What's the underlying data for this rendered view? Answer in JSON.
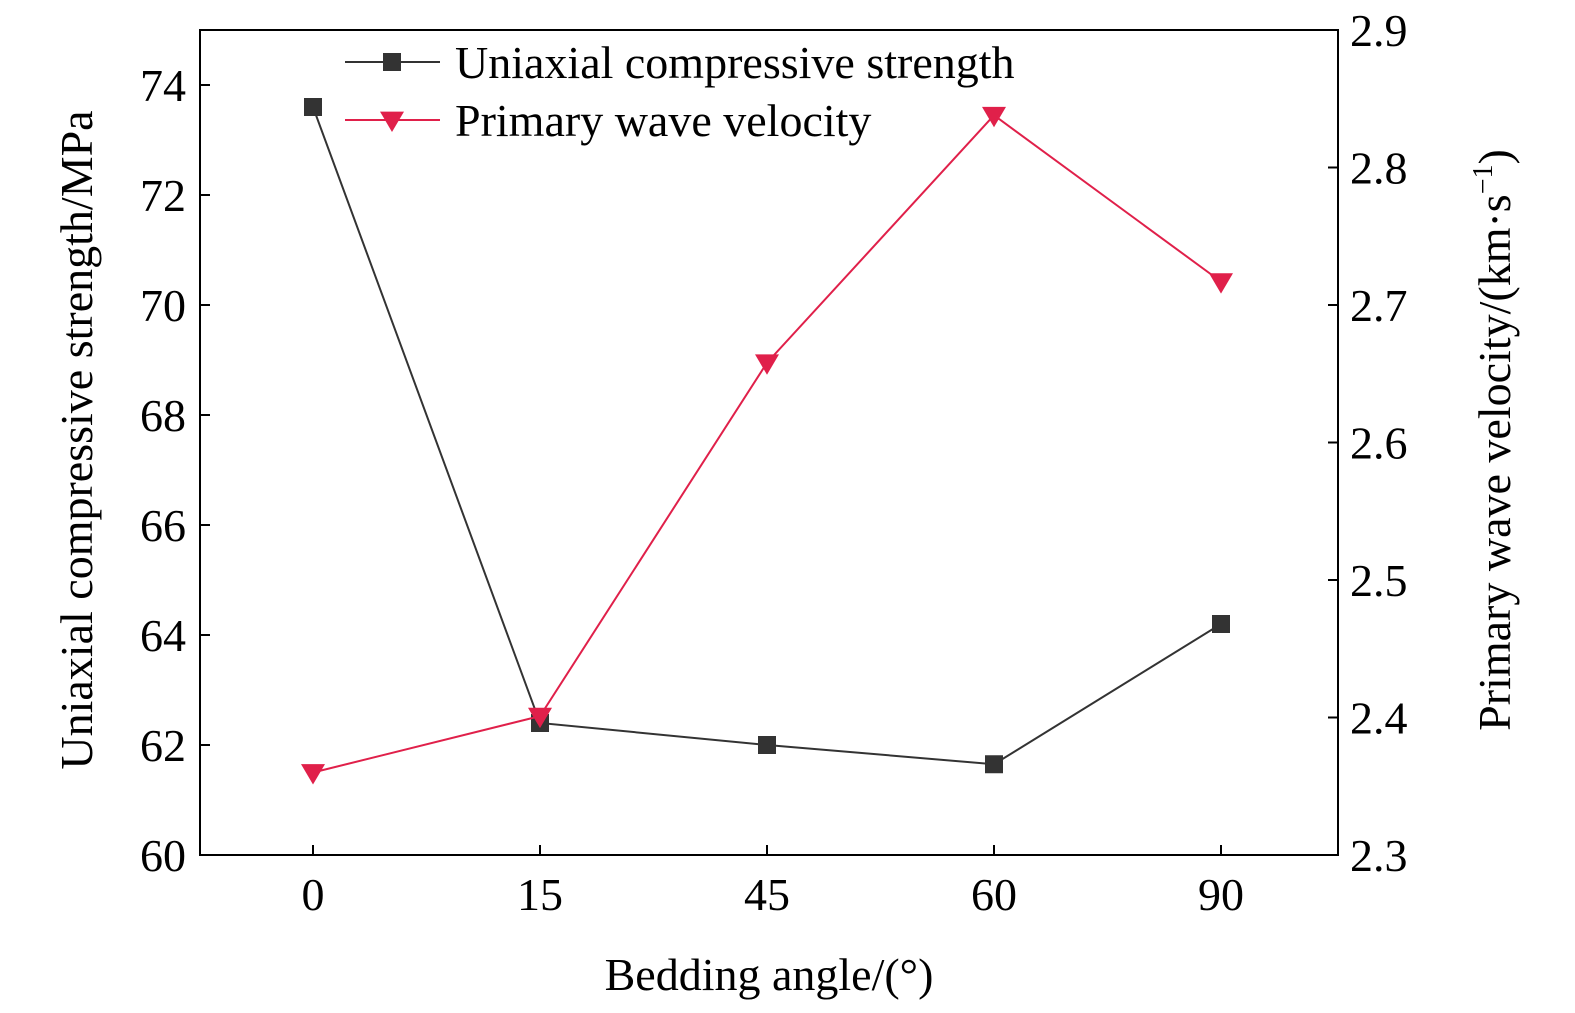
{
  "chart_data": {
    "type": "line",
    "categories": [
      "0",
      "15",
      "45",
      "60",
      "90"
    ],
    "xlabel": "Bedding angle/(°)",
    "ylabel_left": "Uniaxial compressive strength/MPa",
    "ylabel_right_main": "Primary wave velocity/(km·s",
    "ylabel_right_sup": "−1",
    "ylabel_right_close": ")",
    "y_left": {
      "min": 60,
      "max": 75,
      "ticks": [
        60,
        62,
        64,
        66,
        68,
        70,
        72,
        74
      ],
      "tick_labels": [
        "60",
        "62",
        "64",
        "66",
        "68",
        "70",
        "72",
        "74"
      ]
    },
    "y_right": {
      "min": 2.3,
      "max": 2.9,
      "ticks": [
        2.3,
        2.4,
        2.5,
        2.6,
        2.7,
        2.8,
        2.9
      ],
      "tick_labels": [
        "2.3",
        "2.4",
        "2.5",
        "2.6",
        "2.7",
        "2.8",
        "2.9"
      ]
    },
    "grid": false,
    "legend_position": "top-center",
    "series": [
      {
        "name": "Uniaxial compressive strength",
        "axis": "left",
        "marker": "square",
        "color": "#333333",
        "values": [
          73.6,
          62.4,
          62.0,
          61.65,
          64.2
        ]
      },
      {
        "name": "Primary wave velocity",
        "axis": "right",
        "marker": "triangle-down",
        "color": "#e0204a",
        "values": [
          2.36,
          2.401,
          2.658,
          2.838,
          2.717
        ]
      }
    ]
  }
}
